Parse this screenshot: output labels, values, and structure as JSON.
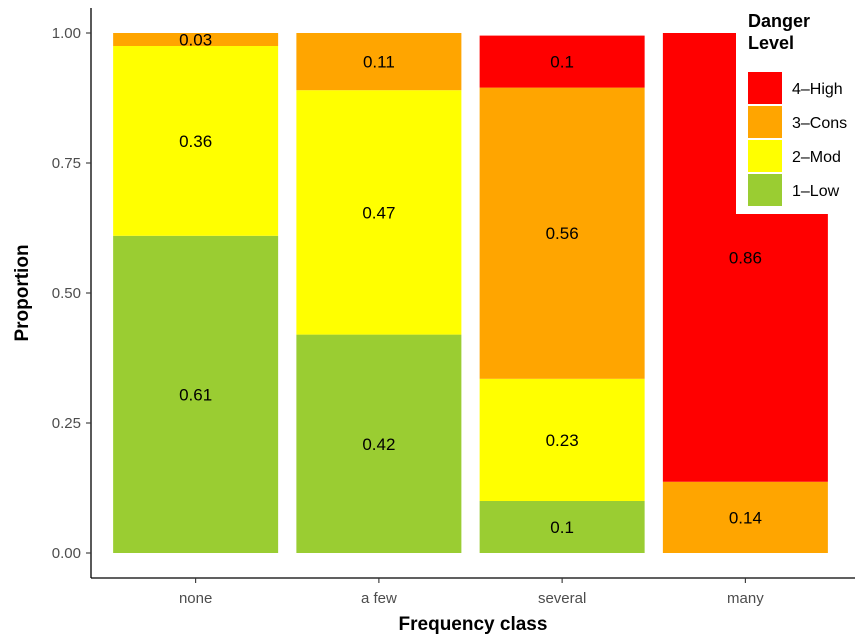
{
  "chart_data": {
    "type": "bar",
    "stacked": true,
    "xlabel": "Frequency class",
    "ylabel": "Proportion",
    "ylim": [
      0,
      1
    ],
    "yticks": [
      0,
      0.25,
      0.5,
      0.75,
      1
    ],
    "ytick_labels": [
      "0.00",
      "0.25",
      "0.50",
      "0.75",
      "1.00"
    ],
    "categories": [
      "none",
      "a few",
      "several",
      "many"
    ],
    "series": [
      {
        "name": "1–Low",
        "color": "#9acd32",
        "values": [
          0.61,
          0.42,
          0.1,
          0.0
        ],
        "labels": [
          "0.61",
          "0.42",
          "0.1",
          ""
        ]
      },
      {
        "name": "2–Mod",
        "color": "#ffff00",
        "values": [
          0.365,
          0.47,
          0.235,
          0.0
        ],
        "labels": [
          "0.36",
          "0.47",
          "0.23",
          ""
        ]
      },
      {
        "name": "3–Cons",
        "color": "#ffa500",
        "values": [
          0.025,
          0.11,
          0.56,
          0.137
        ],
        "labels": [
          "0.03",
          "0.11",
          "0.56",
          "0.14"
        ]
      },
      {
        "name": "4–High",
        "color": "#ff0000",
        "values": [
          0.0,
          0.0,
          0.1,
          0.863
        ],
        "labels": [
          "",
          "",
          "0.1",
          "0.86"
        ]
      }
    ],
    "legend": {
      "title_lines": [
        "Danger",
        "Level"
      ],
      "placement": "top-right",
      "order": [
        "4–High",
        "3–Cons",
        "2–Mod",
        "1–Low"
      ]
    },
    "grid": false
  }
}
